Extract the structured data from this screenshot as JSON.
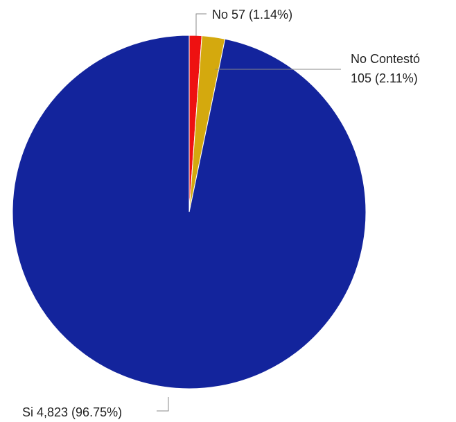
{
  "chart_data": {
    "type": "pie",
    "title": "",
    "slices": [
      {
        "label": "No",
        "value": 57,
        "percent": 1.14,
        "color": "#ee1111",
        "text": "No 57 (1.14%)"
      },
      {
        "label": "No Contestó",
        "value": 105,
        "percent": 2.11,
        "color": "#d4a90e",
        "text_line1": "No Contestó",
        "text_line2": "105 (2.11%)"
      },
      {
        "label": "Si",
        "value": 4823,
        "percent": 96.75,
        "color": "#13249c",
        "text": "Si 4,823 (96.75%)"
      }
    ],
    "start_angle_deg": 0,
    "direction": "clockwise",
    "legend": "none"
  }
}
